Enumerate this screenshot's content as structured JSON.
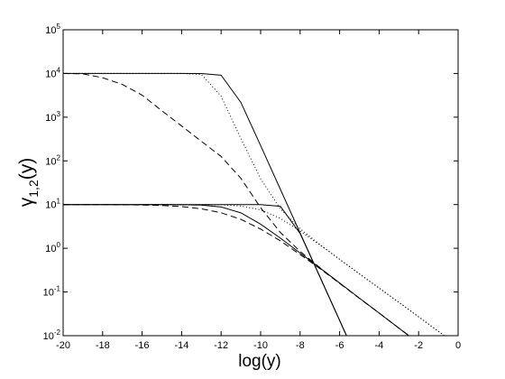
{
  "chart_data": {
    "type": "line",
    "xlabel": "log(y)",
    "ylabel": {
      "symbol": "γ",
      "sub": "1,2",
      "suffix": "(y)"
    },
    "log_y": true,
    "box": true,
    "x": [
      -20,
      -19,
      -18,
      -17,
      -16,
      -15,
      -14,
      -13,
      -12,
      -11,
      -10,
      -9,
      -8,
      -7,
      -6,
      -5,
      -4,
      -3,
      -2,
      -1,
      0
    ],
    "xlim": [
      -20,
      0
    ],
    "xticks": [
      -20,
      -18,
      -16,
      -14,
      -12,
      -10,
      -8,
      -6,
      -4,
      -2,
      0
    ],
    "ylim": [
      0.01,
      100000
    ],
    "yticks": [
      {
        "value": 0.01,
        "label": "10",
        "sup": "-2"
      },
      {
        "value": 0.1,
        "label": "10",
        "sup": "-1"
      },
      {
        "value": 1,
        "label": "10",
        "sup": "0"
      },
      {
        "value": 10,
        "label": "10",
        "sup": "1"
      },
      {
        "value": 100,
        "label": "10",
        "sup": "2"
      },
      {
        "value": 1000,
        "label": "10",
        "sup": "3"
      },
      {
        "value": 10000,
        "label": "10",
        "sup": "4"
      },
      {
        "value": 100000,
        "label": "10",
        "sup": "5"
      }
    ],
    "series": [
      {
        "color": "#000000",
        "dash": "solid",
        "values": [
          10000,
          10000,
          10000,
          10000,
          10000,
          10000,
          10000,
          9990,
          9130,
          2180,
          224,
          22.4,
          2.24,
          0.224,
          0.0224,
          0.00224,
          null,
          null,
          null,
          null,
          null
        ]
      },
      {
        "color": "#000000",
        "dash": "dotted",
        "values": [
          10000,
          10000,
          10000,
          10000,
          10000,
          10000,
          10000,
          9540,
          3020,
          325,
          39,
          8.0,
          2.8,
          1.22,
          0.56,
          0.26,
          0.123,
          0.058,
          0.027,
          0.0126,
          0.0059
        ]
      },
      {
        "color": "#000000",
        "dash": "dashed",
        "values": [
          10000,
          9800,
          8000,
          5600,
          3200,
          1400,
          630,
          280,
          126,
          40,
          8.5,
          2.3,
          0.85,
          0.36,
          0.158,
          0.072,
          0.033,
          0.0149,
          0.0068,
          null,
          null
        ]
      },
      {
        "color": "#000000",
        "dash": "solid",
        "values": [
          10,
          10,
          10,
          10,
          10,
          10,
          10,
          10,
          10,
          10,
          10,
          9.13,
          2.18,
          0.224,
          0.0224,
          0.00224,
          null,
          null,
          null,
          null,
          null
        ]
      },
      {
        "color": "#000000",
        "dash": "solid",
        "values": [
          10,
          10,
          10,
          10,
          10,
          10,
          9.94,
          9.72,
          8.81,
          6.48,
          3.56,
          1.71,
          0.78,
          0.355,
          0.161,
          0.0725,
          0.033,
          0.0149,
          0.0068,
          null,
          null
        ]
      },
      {
        "color": "#000000",
        "dash": "dashed",
        "values": [
          10,
          10,
          10,
          9.9,
          9.78,
          9.52,
          9.0,
          8.0,
          6.5,
          4.6,
          2.75,
          1.48,
          0.72,
          0.343,
          0.158,
          0.072,
          0.033,
          0.0149,
          0.0068,
          null,
          null
        ]
      },
      {
        "color": "#000000",
        "dash": "dotted",
        "values": [
          10,
          10,
          10,
          10,
          10,
          10,
          10,
          10,
          9.9,
          9.29,
          7.6,
          4.82,
          2.49,
          1.19,
          0.56,
          0.26,
          0.123,
          0.058,
          0.027,
          0.0126,
          0.0059
        ]
      }
    ]
  }
}
